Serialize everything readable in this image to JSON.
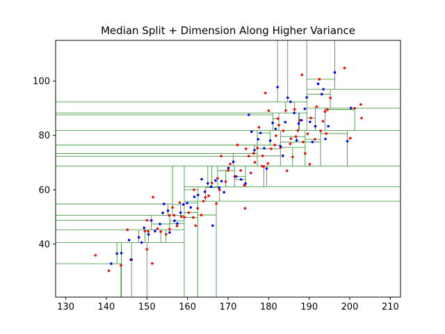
{
  "chart_data": {
    "type": "scatter",
    "title": "Median Split + Dimension Along Higher Variance",
    "xlabel": "",
    "ylabel": "",
    "xlim": [
      127.5,
      212.5
    ],
    "ylim": [
      20.5,
      115
    ],
    "x_ticks": [
      130,
      140,
      150,
      160,
      170,
      180,
      190,
      200,
      210
    ],
    "y_ticks": [
      40,
      60,
      80,
      100
    ],
    "grid": false,
    "legend": "none",
    "colors": {
      "red_points": "#ff0000",
      "blue_points": "#0000ff",
      "split_lines": "#2e8b2e"
    },
    "series": [
      {
        "color": "#ff0000",
        "points": [
          [
            137.3,
            35.9
          ],
          [
            140.6,
            30.2
          ],
          [
            143.6,
            32.2
          ],
          [
            145.2,
            45.3
          ],
          [
            146.0,
            34.3
          ],
          [
            149.5,
            44.8
          ],
          [
            150.0,
            38.1
          ],
          [
            150.0,
            48.8
          ],
          [
            150.3,
            44.7
          ],
          [
            151.3,
            32.9
          ],
          [
            151.5,
            57.3
          ],
          [
            152.6,
            45.7
          ],
          [
            153.4,
            44.6
          ],
          [
            154.7,
            43.6
          ],
          [
            155.5,
            50.6
          ],
          [
            155.6,
            45.5
          ],
          [
            156.3,
            53.5
          ],
          [
            156.7,
            50.6
          ],
          [
            157.4,
            46.7
          ],
          [
            158.1,
            55.3
          ],
          [
            158.5,
            50.1
          ],
          [
            159.2,
            49.9
          ],
          [
            160.3,
            51.6
          ],
          [
            161.4,
            49.8
          ],
          [
            161.6,
            60.0
          ],
          [
            162.0,
            46.8
          ],
          [
            162.5,
            53.2
          ],
          [
            163.4,
            50.7
          ],
          [
            163.9,
            55.8
          ],
          [
            164.4,
            57.2
          ],
          [
            165.2,
            57.8
          ],
          [
            166.0,
            62.5
          ],
          [
            167.1,
            54.9
          ],
          [
            167.4,
            64.2
          ],
          [
            167.9,
            60.0
          ],
          [
            168.3,
            72.4
          ],
          [
            169.4,
            63.0
          ],
          [
            170.0,
            67.1
          ],
          [
            170.5,
            69.5
          ],
          [
            171.6,
            64.9
          ],
          [
            172.3,
            76.5
          ],
          [
            173.1,
            67.1
          ],
          [
            174.0,
            61.7
          ],
          [
            174.2,
            53.2
          ],
          [
            174.4,
            75.1
          ],
          [
            175.1,
            72.4
          ],
          [
            175.6,
            66.2
          ],
          [
            176.3,
            73.4
          ],
          [
            176.6,
            70.1
          ],
          [
            177.2,
            75.4
          ],
          [
            177.6,
            83.0
          ],
          [
            178.4,
            68.7
          ],
          [
            178.5,
            72.5
          ],
          [
            178.8,
            68.6
          ],
          [
            179.2,
            95.6
          ],
          [
            179.8,
            69.7
          ],
          [
            180.0,
            89.1
          ],
          [
            180.6,
            75.1
          ],
          [
            181.5,
            76.5
          ],
          [
            181.8,
            79.9
          ],
          [
            182.3,
            86.2
          ],
          [
            182.5,
            83.8
          ],
          [
            183.0,
            75.6
          ],
          [
            183.6,
            81.7
          ],
          [
            184.2,
            89.2
          ],
          [
            184.5,
            67.0
          ],
          [
            185.3,
            76.9
          ],
          [
            185.5,
            78.8
          ],
          [
            185.9,
            72.1
          ],
          [
            186.4,
            89.6
          ],
          [
            186.7,
            79.6
          ],
          [
            187.2,
            81.8
          ],
          [
            187.6,
            85.6
          ],
          [
            188.2,
            102.3
          ],
          [
            188.5,
            77.6
          ],
          [
            189.0,
            73.4
          ],
          [
            189.6,
            80.6
          ],
          [
            190.1,
            69.4
          ],
          [
            190.4,
            86.4
          ],
          [
            191.4,
            78.6
          ],
          [
            191.8,
            90.6
          ],
          [
            192.5,
            100.7
          ],
          [
            192.8,
            81.7
          ],
          [
            193.4,
            85.2
          ],
          [
            193.9,
            88.8
          ],
          [
            194.2,
            80.7
          ],
          [
            194.5,
            89.5
          ],
          [
            195.2,
            93.8
          ],
          [
            198.7,
            104.8
          ],
          [
            200.1,
            79.0
          ],
          [
            201.2,
            90.0
          ],
          [
            202.7,
            91.4
          ],
          [
            202.9,
            86.4
          ]
        ]
      },
      {
        "color": "#0000ff",
        "points": [
          [
            141.2,
            32.8
          ],
          [
            142.6,
            36.5
          ],
          [
            143.7,
            36.7
          ],
          [
            145.6,
            41.5
          ],
          [
            146.2,
            34.3
          ],
          [
            148.0,
            42.5
          ],
          [
            148.7,
            40.6
          ],
          [
            149.3,
            46.0
          ],
          [
            150.4,
            43.6
          ],
          [
            151.1,
            48.7
          ],
          [
            152.0,
            44.8
          ],
          [
            153.2,
            47.4
          ],
          [
            153.9,
            51.5
          ],
          [
            154.2,
            54.8
          ],
          [
            155.2,
            52.3
          ],
          [
            155.6,
            44.3
          ],
          [
            156.8,
            48.6
          ],
          [
            157.5,
            47.6
          ],
          [
            158.3,
            51.6
          ],
          [
            159.0,
            54.6
          ],
          [
            159.9,
            55.1
          ],
          [
            160.8,
            53.5
          ],
          [
            161.7,
            57.4
          ],
          [
            162.6,
            58.1
          ],
          [
            163.5,
            63.9
          ],
          [
            164.3,
            59.3
          ],
          [
            165.0,
            62.4
          ],
          [
            165.8,
            61.1
          ],
          [
            166.2,
            46.8
          ],
          [
            166.9,
            63.4
          ],
          [
            167.8,
            60.8
          ],
          [
            168.4,
            63.2
          ],
          [
            169.0,
            59.1
          ],
          [
            170.1,
            68.0
          ],
          [
            171.3,
            70.3
          ],
          [
            172.0,
            64.9
          ],
          [
            173.2,
            63.8
          ],
          [
            174.3,
            62.3
          ],
          [
            175.1,
            87.6
          ],
          [
            175.8,
            81.4
          ],
          [
            176.5,
            74.6
          ],
          [
            177.4,
            78.6
          ],
          [
            178.0,
            80.9
          ],
          [
            178.9,
            75.3
          ],
          [
            179.5,
            67.8
          ],
          [
            180.4,
            78.1
          ],
          [
            181.0,
            84.6
          ],
          [
            181.7,
            82.4
          ],
          [
            182.2,
            97.8
          ],
          [
            182.9,
            76.0
          ],
          [
            183.5,
            72.5
          ],
          [
            184.1,
            84.9
          ],
          [
            184.7,
            93.9
          ],
          [
            185.4,
            92.4
          ],
          [
            186.3,
            88.3
          ],
          [
            186.9,
            78.2
          ],
          [
            187.4,
            84.4
          ],
          [
            188.1,
            85.6
          ],
          [
            188.9,
            89.8
          ],
          [
            189.4,
            94.0
          ],
          [
            190.2,
            85.0
          ],
          [
            190.8,
            77.6
          ],
          [
            191.5,
            83.4
          ],
          [
            192.2,
            99.0
          ],
          [
            193.1,
            95.2
          ],
          [
            193.5,
            97.0
          ],
          [
            194.0,
            78.7
          ],
          [
            194.7,
            83.4
          ],
          [
            196.3,
            103.2
          ],
          [
            199.4,
            77.9
          ],
          [
            200.3,
            90.1
          ]
        ]
      }
    ]
  }
}
